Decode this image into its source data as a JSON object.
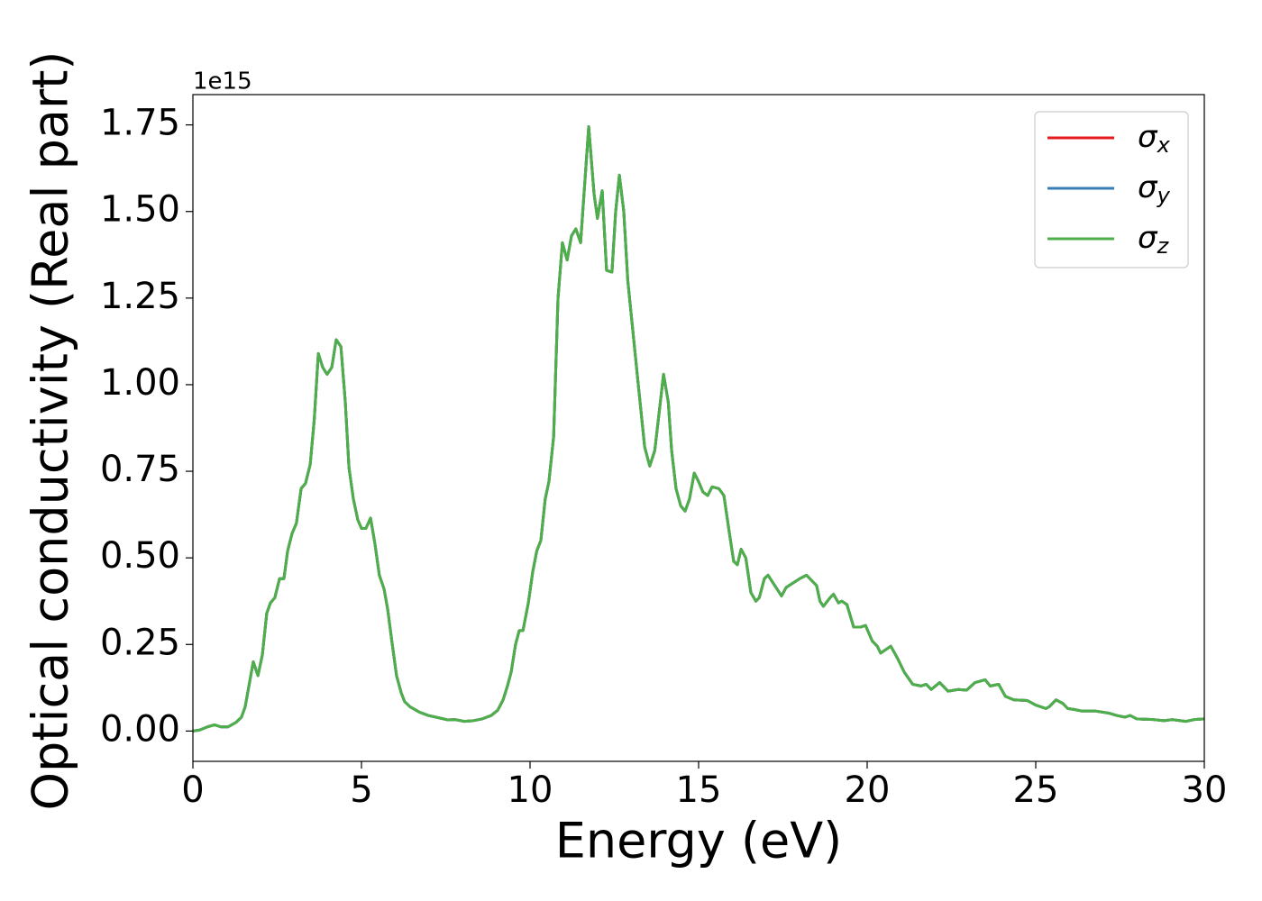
{
  "chart_data": {
    "type": "line",
    "xlabel": "Energy (eV)",
    "ylabel": "Optical conductivity (Real part)",
    "offset_label": "1e15",
    "x": [
      0,
      0.2,
      0.43,
      0.64,
      0.83,
      1.04,
      1.28,
      1.44,
      1.55,
      1.68,
      1.79,
      1.93,
      2.06,
      2.19,
      2.3,
      2.43,
      2.57,
      2.7,
      2.81,
      2.94,
      3.07,
      3.21,
      3.34,
      3.48,
      3.6,
      3.72,
      3.85,
      3.98,
      4.12,
      4.25,
      4.39,
      4.52,
      4.63,
      4.76,
      4.89,
      5.0,
      5.13,
      5.27,
      5.4,
      5.53,
      5.67,
      5.78,
      5.9,
      6.04,
      6.18,
      6.28,
      6.44,
      6.71,
      6.98,
      7.3,
      7.57,
      7.78,
      8.05,
      8.32,
      8.58,
      8.85,
      9.04,
      9.2,
      9.33,
      9.44,
      9.57,
      9.68,
      9.79,
      9.95,
      10.08,
      10.2,
      10.32,
      10.45,
      10.56,
      10.7,
      10.83,
      10.96,
      11.1,
      11.23,
      11.36,
      11.5,
      11.74,
      11.9,
      12.0,
      12.14,
      12.27,
      12.43,
      12.54,
      12.65,
      12.78,
      12.9,
      13.2,
      13.4,
      13.55,
      13.7,
      13.96,
      14.1,
      14.2,
      14.33,
      14.47,
      14.6,
      14.73,
      14.87,
      15.0,
      15.13,
      15.27,
      15.4,
      15.6,
      15.75,
      15.9,
      16.04,
      16.15,
      16.26,
      16.4,
      16.55,
      16.7,
      16.8,
      16.95,
      17.06,
      17.46,
      17.6,
      18.0,
      18.2,
      18.5,
      18.6,
      18.7,
      18.9,
      19.0,
      19.15,
      19.25,
      19.4,
      19.6,
      19.8,
      19.95,
      20.15,
      20.3,
      20.4,
      20.7,
      20.9,
      21.1,
      21.35,
      21.6,
      21.75,
      21.9,
      22.15,
      22.4,
      22.7,
      22.95,
      23.2,
      23.5,
      23.65,
      23.9,
      24.1,
      24.35,
      24.75,
      25.0,
      25.3,
      25.4,
      25.6,
      25.8,
      25.95,
      26.15,
      26.35,
      26.75,
      27.15,
      27.4,
      27.65,
      27.8,
      28.0,
      28.5,
      28.8,
      29.05,
      29.45,
      29.7,
      30
    ],
    "series": [
      {
        "name": "σx",
        "color": "#e41a1c",
        "values": [
          0,
          0.003,
          0.012,
          0.018,
          0.012,
          0.012,
          0.025,
          0.04,
          0.07,
          0.14,
          0.2,
          0.16,
          0.22,
          0.34,
          0.37,
          0.385,
          0.44,
          0.44,
          0.52,
          0.57,
          0.6,
          0.7,
          0.715,
          0.77,
          0.9,
          1.09,
          1.05,
          1.03,
          1.05,
          1.13,
          1.11,
          0.95,
          0.76,
          0.67,
          0.61,
          0.585,
          0.585,
          0.615,
          0.54,
          0.45,
          0.41,
          0.35,
          0.26,
          0.16,
          0.11,
          0.085,
          0.07,
          0.055,
          0.045,
          0.038,
          0.032,
          0.033,
          0.028,
          0.03,
          0.035,
          0.045,
          0.06,
          0.09,
          0.13,
          0.17,
          0.25,
          0.29,
          0.29,
          0.37,
          0.46,
          0.52,
          0.55,
          0.67,
          0.72,
          0.85,
          1.25,
          1.41,
          1.36,
          1.43,
          1.45,
          1.41,
          1.745,
          1.55,
          1.48,
          1.56,
          1.33,
          1.325,
          1.5,
          1.605,
          1.5,
          1.3,
          1.01,
          0.82,
          0.765,
          0.81,
          1.03,
          0.95,
          0.81,
          0.7,
          0.65,
          0.635,
          0.67,
          0.745,
          0.72,
          0.69,
          0.68,
          0.705,
          0.7,
          0.68,
          0.58,
          0.49,
          0.48,
          0.525,
          0.5,
          0.4,
          0.375,
          0.385,
          0.44,
          0.45,
          0.39,
          0.415,
          0.44,
          0.45,
          0.42,
          0.375,
          0.36,
          0.385,
          0.395,
          0.37,
          0.375,
          0.365,
          0.3,
          0.3,
          0.305,
          0.26,
          0.245,
          0.225,
          0.245,
          0.21,
          0.17,
          0.135,
          0.13,
          0.135,
          0.12,
          0.14,
          0.115,
          0.12,
          0.118,
          0.14,
          0.148,
          0.13,
          0.135,
          0.1,
          0.09,
          0.088,
          0.075,
          0.065,
          0.07,
          0.09,
          0.08,
          0.065,
          0.062,
          0.058,
          0.058,
          0.052,
          0.045,
          0.04,
          0.045,
          0.035,
          0.033,
          0.03,
          0.033,
          0.028,
          0.033,
          0.035
        ]
      },
      {
        "name": "σy",
        "color": "#377eb8",
        "values": [
          0,
          0.003,
          0.012,
          0.018,
          0.012,
          0.012,
          0.025,
          0.04,
          0.07,
          0.14,
          0.2,
          0.16,
          0.22,
          0.34,
          0.37,
          0.385,
          0.44,
          0.44,
          0.52,
          0.57,
          0.6,
          0.7,
          0.715,
          0.77,
          0.9,
          1.09,
          1.05,
          1.03,
          1.05,
          1.13,
          1.11,
          0.95,
          0.76,
          0.67,
          0.61,
          0.585,
          0.585,
          0.615,
          0.54,
          0.45,
          0.41,
          0.35,
          0.26,
          0.16,
          0.11,
          0.085,
          0.07,
          0.055,
          0.045,
          0.038,
          0.032,
          0.033,
          0.028,
          0.03,
          0.035,
          0.045,
          0.06,
          0.09,
          0.13,
          0.17,
          0.25,
          0.29,
          0.29,
          0.37,
          0.46,
          0.52,
          0.55,
          0.67,
          0.72,
          0.85,
          1.25,
          1.41,
          1.36,
          1.43,
          1.45,
          1.41,
          1.745,
          1.55,
          1.48,
          1.56,
          1.33,
          1.325,
          1.5,
          1.605,
          1.5,
          1.3,
          1.01,
          0.82,
          0.765,
          0.81,
          1.03,
          0.95,
          0.81,
          0.7,
          0.65,
          0.635,
          0.67,
          0.745,
          0.72,
          0.69,
          0.68,
          0.705,
          0.7,
          0.68,
          0.58,
          0.49,
          0.48,
          0.525,
          0.5,
          0.4,
          0.375,
          0.385,
          0.44,
          0.45,
          0.39,
          0.415,
          0.44,
          0.45,
          0.42,
          0.375,
          0.36,
          0.385,
          0.395,
          0.37,
          0.375,
          0.365,
          0.3,
          0.3,
          0.305,
          0.26,
          0.245,
          0.225,
          0.245,
          0.21,
          0.17,
          0.135,
          0.13,
          0.135,
          0.12,
          0.14,
          0.115,
          0.12,
          0.118,
          0.14,
          0.148,
          0.13,
          0.135,
          0.1,
          0.09,
          0.088,
          0.075,
          0.065,
          0.07,
          0.09,
          0.08,
          0.065,
          0.062,
          0.058,
          0.058,
          0.052,
          0.045,
          0.04,
          0.045,
          0.035,
          0.033,
          0.03,
          0.033,
          0.028,
          0.033,
          0.035
        ]
      },
      {
        "name": "σz",
        "color": "#4daf4a",
        "values": [
          0,
          0.003,
          0.012,
          0.018,
          0.012,
          0.012,
          0.025,
          0.04,
          0.07,
          0.14,
          0.2,
          0.16,
          0.22,
          0.34,
          0.37,
          0.385,
          0.44,
          0.44,
          0.52,
          0.57,
          0.6,
          0.7,
          0.715,
          0.77,
          0.9,
          1.09,
          1.05,
          1.03,
          1.05,
          1.13,
          1.11,
          0.95,
          0.76,
          0.67,
          0.61,
          0.585,
          0.585,
          0.615,
          0.54,
          0.45,
          0.41,
          0.35,
          0.26,
          0.16,
          0.11,
          0.085,
          0.07,
          0.055,
          0.045,
          0.038,
          0.032,
          0.033,
          0.028,
          0.03,
          0.035,
          0.045,
          0.06,
          0.09,
          0.13,
          0.17,
          0.25,
          0.29,
          0.29,
          0.37,
          0.46,
          0.52,
          0.55,
          0.67,
          0.72,
          0.85,
          1.25,
          1.41,
          1.36,
          1.43,
          1.45,
          1.41,
          1.745,
          1.55,
          1.48,
          1.56,
          1.33,
          1.325,
          1.5,
          1.605,
          1.5,
          1.3,
          1.01,
          0.82,
          0.765,
          0.81,
          1.03,
          0.95,
          0.81,
          0.7,
          0.65,
          0.635,
          0.67,
          0.745,
          0.72,
          0.69,
          0.68,
          0.705,
          0.7,
          0.68,
          0.58,
          0.49,
          0.48,
          0.525,
          0.5,
          0.4,
          0.375,
          0.385,
          0.44,
          0.45,
          0.39,
          0.415,
          0.44,
          0.45,
          0.42,
          0.375,
          0.36,
          0.385,
          0.395,
          0.37,
          0.375,
          0.365,
          0.3,
          0.3,
          0.305,
          0.26,
          0.245,
          0.225,
          0.245,
          0.21,
          0.17,
          0.135,
          0.13,
          0.135,
          0.12,
          0.14,
          0.115,
          0.12,
          0.118,
          0.14,
          0.148,
          0.13,
          0.135,
          0.1,
          0.09,
          0.088,
          0.075,
          0.065,
          0.07,
          0.09,
          0.08,
          0.065,
          0.062,
          0.058,
          0.058,
          0.052,
          0.045,
          0.04,
          0.045,
          0.035,
          0.033,
          0.03,
          0.033,
          0.028,
          0.033,
          0.035
        ]
      }
    ],
    "xlim": [
      0,
      30
    ],
    "xticks": [
      0,
      5,
      10,
      15,
      20,
      25,
      30
    ],
    "ylim": [
      -0.0875,
      1.8375
    ],
    "yticks": [
      {
        "value": 0,
        "label": "0.00"
      },
      0.25,
      {
        "value": 0.5,
        "label": "0.50"
      },
      0.75,
      {
        "value": 1,
        "label": "1.00"
      },
      1.25,
      {
        "value": 1.5,
        "label": "1.50"
      },
      1.75
    ],
    "grid": false,
    "legend": "upper right"
  }
}
